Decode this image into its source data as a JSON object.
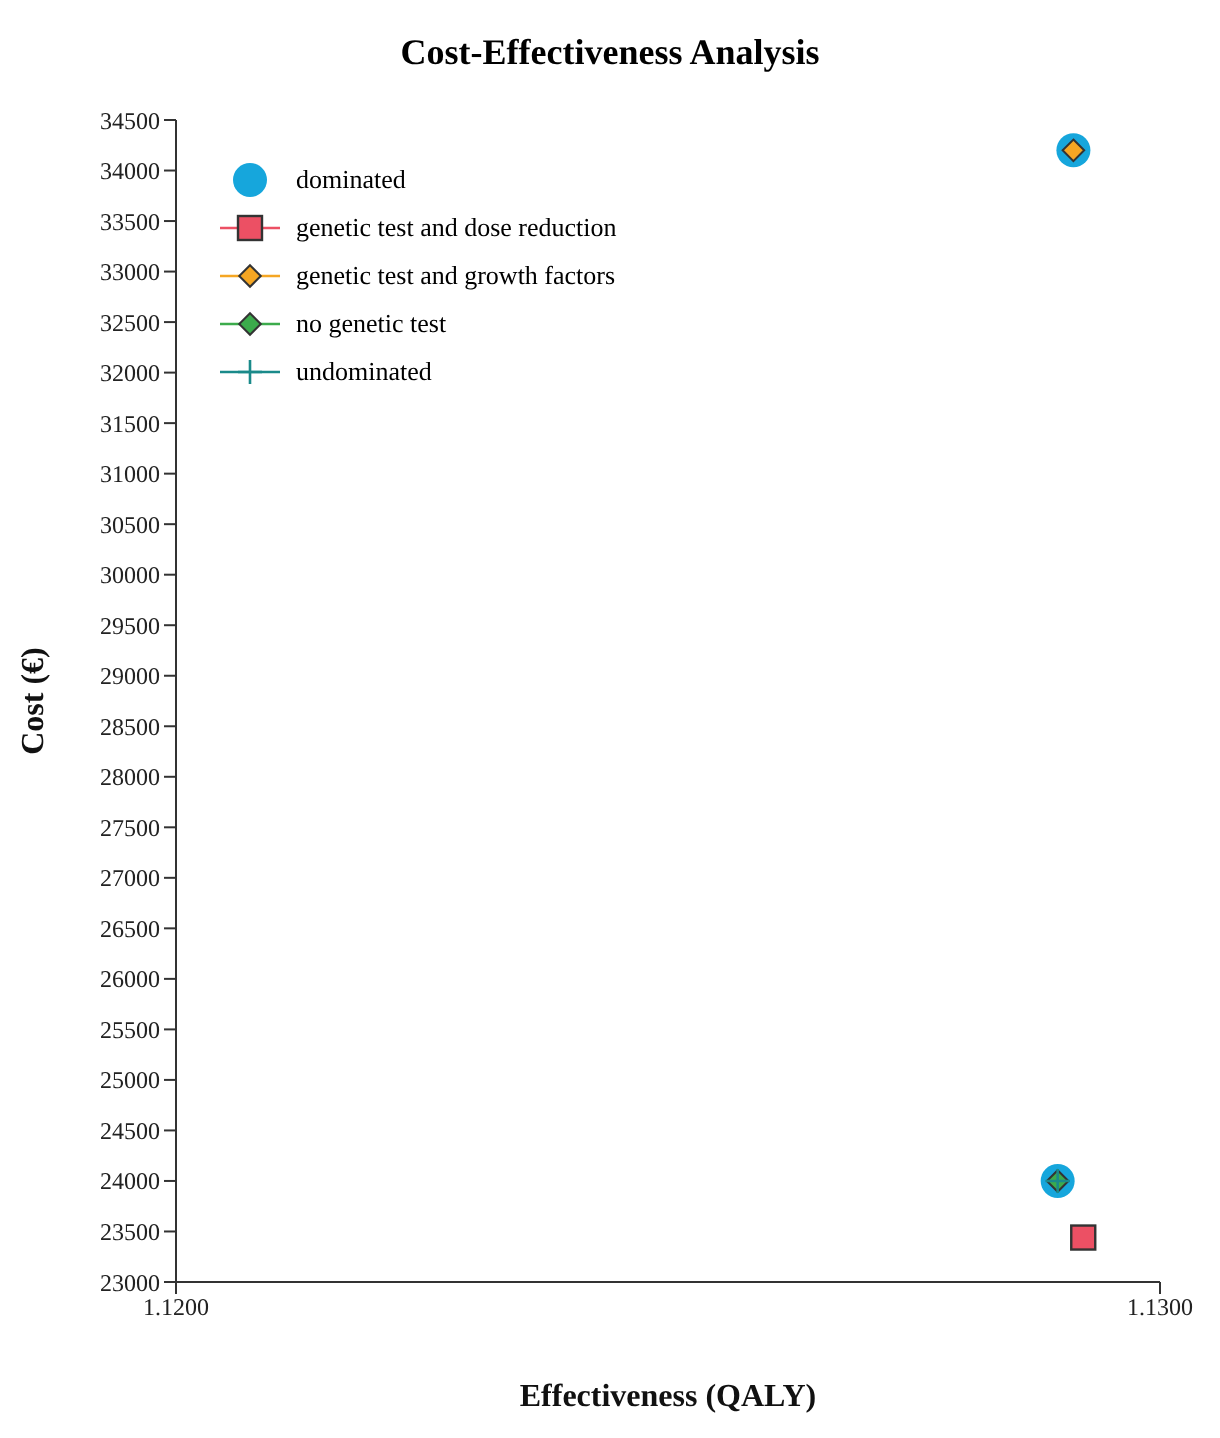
{
  "chart_data": {
    "type": "scatter",
    "title": "Cost-Effectiveness Analysis",
    "xlabel": "Effectiveness (QALY)",
    "ylabel": "Cost (€)",
    "xlim": [
      1.12,
      1.13
    ],
    "xticks": [
      {
        "value": 1.12,
        "label": "1.1200"
      },
      {
        "value": 1.13,
        "label": "1.1300"
      }
    ],
    "ylim": [
      23000,
      34500
    ],
    "yticks": [
      23000,
      23500,
      24000,
      24500,
      25000,
      25500,
      26000,
      26500,
      27000,
      27500,
      28000,
      28500,
      29000,
      29500,
      30000,
      30500,
      31000,
      31500,
      32000,
      32500,
      33000,
      33500,
      34000,
      34500
    ],
    "grid": false,
    "legend": "top left",
    "series": [
      {
        "name": "dominated",
        "color": "#16a6dc",
        "marker": "circle",
        "x": [
          1.12912,
          1.12896
        ],
        "values": [
          34200,
          24000
        ]
      },
      {
        "name": "genetic test and dose reduction",
        "color": "#ec5064",
        "marker": "square",
        "x": [
          1.12922
        ],
        "values": [
          23440
        ]
      },
      {
        "name": "genetic test and growth factors",
        "color": "#f5a623",
        "marker": "diamond",
        "x": [
          1.12912
        ],
        "values": [
          34200
        ]
      },
      {
        "name": "no genetic test",
        "color": "#3cab4c",
        "marker": "diamond",
        "x": [
          1.12896
        ],
        "values": [
          24000
        ]
      },
      {
        "name": "undominated",
        "color": "#1a8a8a",
        "marker": "cross",
        "x": [
          1.12896
        ],
        "values": [
          24000
        ]
      }
    ]
  }
}
